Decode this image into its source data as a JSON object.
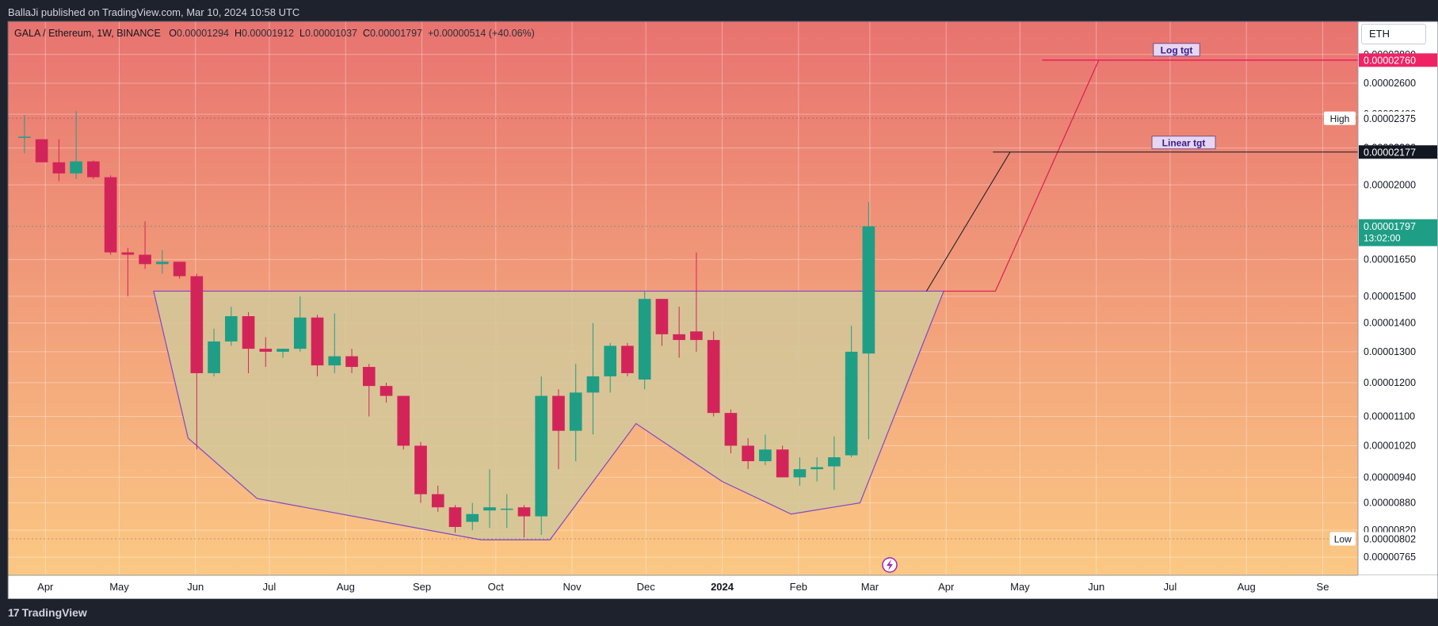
{
  "header": {
    "published": "BallaJi published on TradingView.com, Mar 10, 2024 10:58 UTC"
  },
  "legend": {
    "symbol": "GALA / Ethereum, 1W, BINANCE",
    "o_label": "O",
    "o_value": "0.00001294",
    "h_label": "H",
    "h_value": "0.00001912",
    "l_label": "L",
    "l_value": "0.00001037",
    "c_label": "C",
    "c_value": "0.00001797",
    "change": "+0.00000514 (+40.06%)"
  },
  "currency_button": "ETH",
  "footer": {
    "brand": "TradingView",
    "brand_mark": "17"
  },
  "colors": {
    "up": "#1f9e86",
    "down": "#d3245a",
    "bg_top": "#e87370",
    "bg_bottom": "#fbc884",
    "pattern_fill": "#d2c89a",
    "pattern_line": "#8246c8",
    "log_line": "#ef2364",
    "linear_line": "#131722",
    "price_tag_bg": "#1f9e86",
    "axis_bg": "#ffffff"
  },
  "chart_data": {
    "type": "candlestick",
    "title": "GALA / Ethereum, 1W, BINANCE",
    "y_scale": "log",
    "ylim": [
      7.3e-06,
      3.05e-05
    ],
    "xlim": [
      "2023-03-20",
      "2024-09-15"
    ],
    "x_ticks": [
      "Apr",
      "May",
      "Jun",
      "Jul",
      "Aug",
      "Sep",
      "Oct",
      "Nov",
      "Dec",
      "2024",
      "Feb",
      "Mar",
      "Apr",
      "May",
      "Jun",
      "Jul",
      "Aug",
      "Se"
    ],
    "x_tick_dates": [
      "2023-04-01",
      "2023-05-01",
      "2023-06-01",
      "2023-07-01",
      "2023-08-01",
      "2023-09-01",
      "2023-10-01",
      "2023-11-01",
      "2023-12-01",
      "2024-01-01",
      "2024-02-01",
      "2024-03-01",
      "2024-04-01",
      "2024-05-01",
      "2024-06-01",
      "2024-07-01",
      "2024-08-01",
      "2024-09-01"
    ],
    "y_ticks": [
      "0.00002800",
      "0.00002600",
      "0.00002400",
      "0.00002200",
      "0.00002000",
      "0.00001650",
      "0.00001500",
      "0.00001400",
      "0.00001300",
      "0.00001200",
      "0.00001100",
      "0.00001020",
      "0.00000940",
      "0.00000880",
      "0.00000820",
      "0.00000765"
    ],
    "candles": [
      [
        "2023-03-20",
        2.265e-05,
        2.395e-05,
        2.17e-05,
        2.265e-05
      ],
      [
        "2023-03-27",
        2.25e-05,
        2.25e-05,
        2.12e-05,
        2.12e-05
      ],
      [
        "2023-04-03",
        2.12e-05,
        2.25e-05,
        2.02e-05,
        2.06e-05
      ],
      [
        "2023-04-10",
        2.06e-05,
        2.42e-05,
        2.03e-05,
        2.125e-05
      ],
      [
        "2023-04-17",
        2.125e-05,
        2.13e-05,
        2.03e-05,
        2.04e-05
      ],
      [
        "2023-04-24",
        2.04e-05,
        2.05e-05,
        1.67e-05,
        1.68e-05
      ],
      [
        "2023-05-01",
        1.68e-05,
        1.7e-05,
        1.5e-05,
        1.67e-05
      ],
      [
        "2023-05-08",
        1.67e-05,
        1.82e-05,
        1.61e-05,
        1.63e-05
      ],
      [
        "2023-05-15",
        1.63e-05,
        1.69e-05,
        1.59e-05,
        1.64e-05
      ],
      [
        "2023-05-22",
        1.64e-05,
        1.64e-05,
        1.57e-05,
        1.58e-05
      ],
      [
        "2023-05-29",
        1.58e-05,
        1.59e-05,
        1.01e-05,
        1.23e-05
      ],
      [
        "2023-06-05",
        1.23e-05,
        1.38e-05,
        1.22e-05,
        1.335e-05
      ],
      [
        "2023-06-12",
        1.335e-05,
        1.46e-05,
        1.32e-05,
        1.425e-05
      ],
      [
        "2023-06-19",
        1.425e-05,
        1.44e-05,
        1.23e-05,
        1.31e-05
      ],
      [
        "2023-06-26",
        1.31e-05,
        1.35e-05,
        1.25e-05,
        1.3e-05
      ],
      [
        "2023-07-03",
        1.3e-05,
        1.31e-05,
        1.28e-05,
        1.31e-05
      ],
      [
        "2023-07-10",
        1.31e-05,
        1.5e-05,
        1.3e-05,
        1.42e-05
      ],
      [
        "2023-07-17",
        1.42e-05,
        1.43e-05,
        1.22e-05,
        1.255e-05
      ],
      [
        "2023-07-24",
        1.255e-05,
        1.435e-05,
        1.23e-05,
        1.285e-05
      ],
      [
        "2023-07-31",
        1.285e-05,
        1.31e-05,
        1.23e-05,
        1.25e-05
      ],
      [
        "2023-08-07",
        1.25e-05,
        1.26e-05,
        1.1e-05,
        1.19e-05
      ],
      [
        "2023-08-14",
        1.19e-05,
        1.2e-05,
        1.14e-05,
        1.16e-05
      ],
      [
        "2023-08-21",
        1.16e-05,
        1.16e-05,
        1.01e-05,
        1.02e-05
      ],
      [
        "2023-08-28",
        1.02e-05,
        1.03e-05,
        8.8e-06,
        9e-06
      ],
      [
        "2023-09-04",
        9e-06,
        9.2e-06,
        8.6e-06,
        8.7e-06
      ],
      [
        "2023-09-11",
        8.7e-06,
        8.75e-06,
        8.15e-06,
        8.27e-06
      ],
      [
        "2023-09-18",
        8.38e-06,
        8.8e-06,
        8.2e-06,
        8.55e-06
      ],
      [
        "2023-09-25",
        8.63e-06,
        9.6e-06,
        8.25e-06,
        8.7e-06
      ],
      [
        "2023-10-02",
        8.67e-06,
        9e-06,
        8.25e-06,
        8.67e-06
      ],
      [
        "2023-10-09",
        8.7e-06,
        8.75e-06,
        8.05e-06,
        8.5e-06
      ],
      [
        "2023-10-16",
        8.5e-06,
        1.22e-05,
        8.1e-06,
        1.16e-05
      ],
      [
        "2023-10-23",
        1.16e-05,
        1.18e-05,
        9.6e-06,
        1.06e-05
      ],
      [
        "2023-10-30",
        1.06e-05,
        1.26e-05,
        9.8e-06,
        1.17e-05
      ],
      [
        "2023-11-06",
        1.17e-05,
        1.4e-05,
        1.05e-05,
        1.22e-05
      ],
      [
        "2023-11-13",
        1.22e-05,
        1.33e-05,
        1.17e-05,
        1.32e-05
      ],
      [
        "2023-11-20",
        1.32e-05,
        1.33e-05,
        1.22e-05,
        1.23e-05
      ],
      [
        "2023-11-27",
        1.21e-05,
        1.52e-05,
        1.18e-05,
        1.49e-05
      ],
      [
        "2023-12-04",
        1.49e-05,
        1.49e-05,
        1.32e-05,
        1.36e-05
      ],
      [
        "2023-12-11",
        1.36e-05,
        1.46e-05,
        1.28e-05,
        1.34e-05
      ],
      [
        "2023-12-18",
        1.37e-05,
        1.68e-05,
        1.3e-05,
        1.34e-05
      ],
      [
        "2023-12-25",
        1.34e-05,
        1.37e-05,
        1.1e-05,
        1.11e-05
      ],
      [
        "2024-01-01",
        1.11e-05,
        1.12e-05,
        1e-05,
        1.02e-05
      ],
      [
        "2024-01-08",
        1.02e-05,
        1.04e-05,
        9.6e-06,
        9.8e-06
      ],
      [
        "2024-01-15",
        9.8e-06,
        1.05e-05,
        9.7e-06,
        1.01e-05
      ],
      [
        "2024-01-22",
        1.01e-05,
        1.02e-05,
        9.4e-06,
        9.4e-06
      ],
      [
        "2024-01-29",
        9.4e-06,
        9.9e-06,
        9.2e-06,
        9.6e-06
      ],
      [
        "2024-02-05",
        9.6e-06,
        9.9e-06,
        9.3e-06,
        9.65e-06
      ],
      [
        "2024-02-12",
        9.67e-06,
        1.045e-05,
        9.1e-06,
        9.9e-06
      ],
      [
        "2024-02-19",
        9.95e-06,
        1.39e-05,
        9.9e-06,
        1.3e-05
      ],
      [
        "2024-02-26",
        1.294e-05,
        1.912e-05,
        1.037e-05,
        1.797e-05
      ]
    ],
    "pattern": {
      "name": "cup and handle",
      "points": [
        [
          "2023-05-15",
          1.52e-05
        ],
        [
          "2023-05-29",
          1.04e-05
        ],
        [
          "2023-06-26",
          8.9e-06
        ],
        [
          "2023-09-25",
          8e-06
        ],
        [
          "2023-10-23",
          8e-06
        ],
        [
          "2023-11-27",
          1.08e-05
        ],
        [
          "2024-01-01",
          9.3e-06
        ],
        [
          "2024-01-29",
          8.55e-06
        ],
        [
          "2024-02-26",
          8.8e-06
        ],
        [
          "2024-03-31",
          1.52e-05
        ],
        [
          "2023-05-15",
          1.52e-05
        ]
      ]
    },
    "projections": [
      {
        "label": "Log tgt",
        "value": "0.00002760",
        "start": [
          "2024-03-31",
          1.52e-05
        ],
        "mid": [
          "2024-04-21",
          1.52e-05
        ],
        "end": [
          "2024-06-02",
          2.76e-05
        ],
        "line_from": "2024-05-10"
      },
      {
        "label": "Linear tgt",
        "value": "0.00002177",
        "start": [
          "2024-03-24",
          1.52e-05
        ],
        "end": [
          "2024-04-27",
          2.177e-05
        ],
        "line_from": "2024-04-20"
      }
    ],
    "price_labels": [
      {
        "label": "High",
        "value": "0.00002375"
      },
      {
        "label": "Low",
        "value": "0.00000802"
      }
    ],
    "current": {
      "value": "0.00001797",
      "countdown": "13:02:00"
    }
  }
}
